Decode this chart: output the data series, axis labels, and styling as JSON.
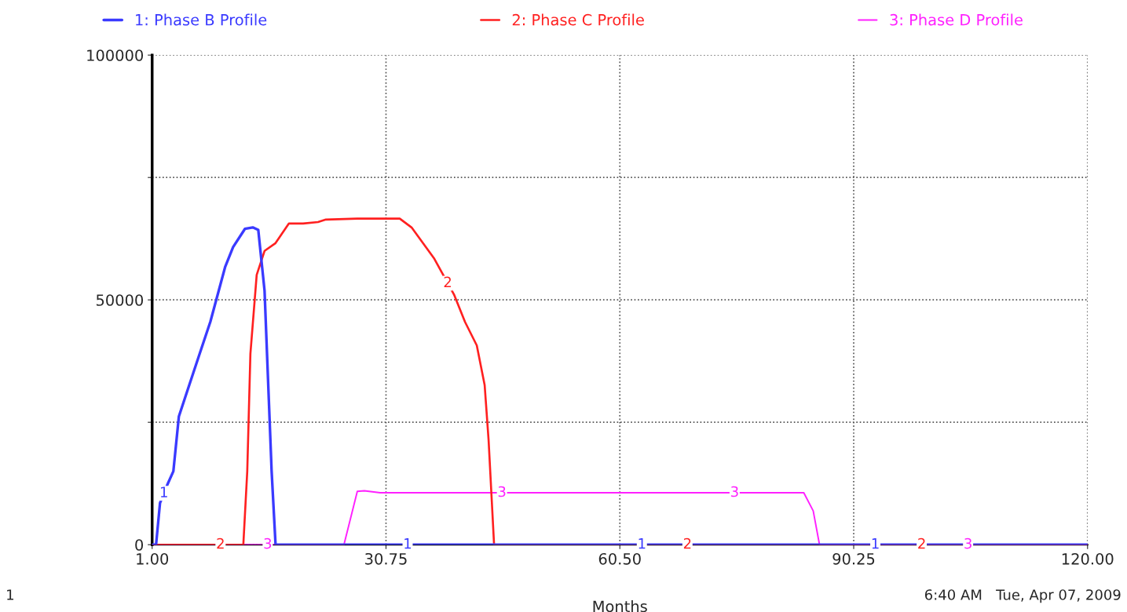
{
  "chart_data": {
    "type": "line",
    "xlabel": "Months",
    "xlim": [
      1,
      120
    ],
    "xticks": [
      {
        "value": 1,
        "label": "1.00"
      },
      {
        "value": 30.75,
        "label": "30.75"
      },
      {
        "value": 60.5,
        "label": "60.50"
      },
      {
        "value": 90.25,
        "label": "90.25"
      },
      {
        "value": 120,
        "label": "120.00"
      }
    ],
    "ylim": [
      0,
      100000
    ],
    "yticks": [
      0,
      {
        "value": 25000,
        "label": null
      },
      50000,
      {
        "value": 75000,
        "label": null
      },
      100000
    ],
    "grid": true,
    "legend": "top",
    "marker": "none",
    "line_style": "solid",
    "series": [
      {
        "name": "1: Phase B Profile",
        "color": "#3a3aff",
        "x": [
          1,
          1.5,
          2.0,
          3.0,
          3.7,
          4.4,
          6.4,
          8.4,
          10.3,
          11.3,
          12.8,
          13.8,
          14.5,
          15.3,
          16.2,
          16.7,
          30,
          45,
          120
        ],
        "values": [
          0,
          0,
          8500,
          12500,
          15000,
          26200,
          35900,
          45500,
          56800,
          60800,
          64500,
          64800,
          64300,
          51900,
          15000,
          0,
          0,
          0,
          0
        ]
      },
      {
        "name": "2: Phase C Profile",
        "color": "#ff2020",
        "x": [
          1,
          12.6,
          13.1,
          13.5,
          14.3,
          15.3,
          16.7,
          18.4,
          20.2,
          22.1,
          23.1,
          27.1,
          32.5,
          34.0,
          36.9,
          39.4,
          40.8,
          42.3,
          43.3,
          43.8,
          44.5,
          120
        ],
        "values": [
          0,
          0,
          15000,
          39000,
          55100,
          60000,
          61600,
          65600,
          65600,
          65900,
          66400,
          66600,
          66600,
          64800,
          58400,
          51100,
          45500,
          40700,
          32600,
          21400,
          0,
          0
        ]
      },
      {
        "name": "3: Phase D Profile",
        "color": "#ff20ff",
        "x": [
          1,
          25.4,
          27.1,
          28.0,
          30.0,
          83.9,
          85.1,
          85.9,
          120
        ],
        "values": [
          0,
          0,
          10900,
          11000,
          10600,
          10600,
          6900,
          0,
          0
        ]
      }
    ],
    "annotations": [
      {
        "text": "1",
        "x": 2.5,
        "y": 10500
      },
      {
        "text": "2",
        "x": 9.7,
        "y": 0
      },
      {
        "text": "3",
        "x": 15.7,
        "y": 0
      },
      {
        "text": "1",
        "x": 33.5,
        "y": 0
      },
      {
        "text": "2",
        "x": 38.6,
        "y": 53400
      },
      {
        "text": "3",
        "x": 45.5,
        "y": 10600
      },
      {
        "text": "1",
        "x": 63.3,
        "y": 0
      },
      {
        "text": "2",
        "x": 69.1,
        "y": 0
      },
      {
        "text": "3",
        "x": 75.1,
        "y": 10600
      },
      {
        "text": "1",
        "x": 93,
        "y": 0
      },
      {
        "text": "2",
        "x": 98.9,
        "y": 0
      },
      {
        "text": "3",
        "x": 104.8,
        "y": 0
      },
      "1",
      "6:40 AM   Tue, Apr 07, 2009"
    ]
  }
}
